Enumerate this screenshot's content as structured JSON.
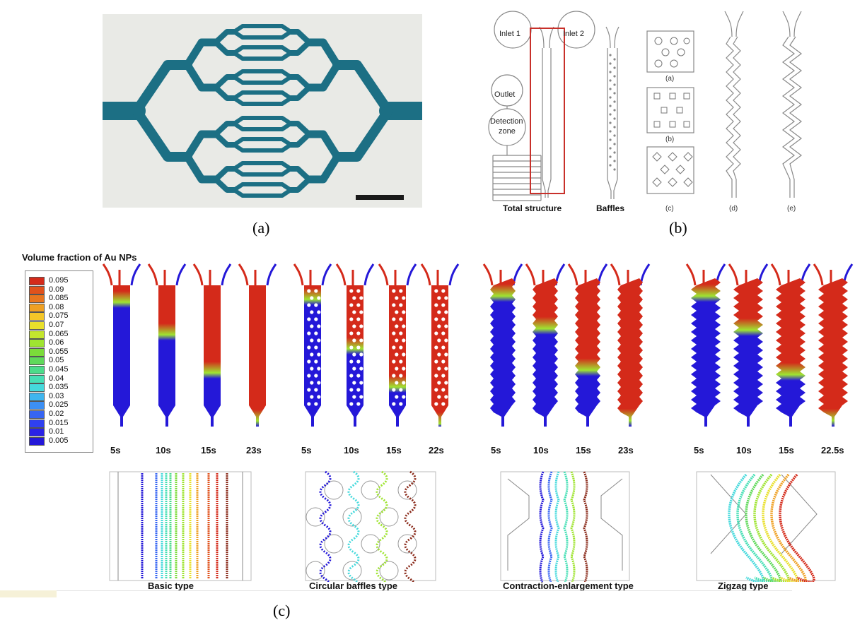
{
  "panel_a": {
    "caption": "(a)"
  },
  "panel_b": {
    "caption": "(b)",
    "inlet1": "Inlet 1",
    "inlet2": "Inlet 2",
    "outlet": "Outlet",
    "detection1": "Detection",
    "detection2": "zone",
    "total_structure": "Total structure",
    "baffles": "Baffles",
    "sub_a": "(a)",
    "sub_b": "(b)",
    "sub_c": "(c)",
    "sub_d": "(d)",
    "sub_e": "(e)"
  },
  "panel_c": {
    "caption": "(c)",
    "legend_title": "Volume fraction of Au NPs",
    "legend": [
      {
        "value": "0.095",
        "color": "#d42a1a"
      },
      {
        "value": "0.09",
        "color": "#e0521c"
      },
      {
        "value": "0.085",
        "color": "#e8761f"
      },
      {
        "value": "0.08",
        "color": "#efa023"
      },
      {
        "value": "0.075",
        "color": "#f4c628"
      },
      {
        "value": "0.07",
        "color": "#e9e02b"
      },
      {
        "value": "0.065",
        "color": "#c4e62d"
      },
      {
        "value": "0.06",
        "color": "#9fe431"
      },
      {
        "value": "0.055",
        "color": "#7bdc3a"
      },
      {
        "value": "0.05",
        "color": "#5fd95a"
      },
      {
        "value": "0.045",
        "color": "#4cdc8a"
      },
      {
        "value": "0.04",
        "color": "#46dfb5"
      },
      {
        "value": "0.035",
        "color": "#45d9dc"
      },
      {
        "value": "0.03",
        "color": "#3fb5ee"
      },
      {
        "value": "0.025",
        "color": "#3c8ff3"
      },
      {
        "value": "0.02",
        "color": "#3765f3"
      },
      {
        "value": "0.015",
        "color": "#2f40f0"
      },
      {
        "value": "0.01",
        "color": "#2a22e6"
      },
      {
        "value": "0.005",
        "color": "#2418d8"
      }
    ],
    "groups": [
      {
        "name": "Basic type",
        "times": [
          "5s",
          "10s",
          "15s",
          "23s"
        ]
      },
      {
        "name": "Circular baffles type",
        "times": [
          "5s",
          "10s",
          "15s",
          "22s"
        ]
      },
      {
        "name": "Contraction-enlargement type",
        "times": [
          "5s",
          "10s",
          "15s",
          "23s"
        ]
      },
      {
        "name": "Zigzag type",
        "times": [
          "5s",
          "10s",
          "15s",
          "22.5s"
        ]
      }
    ]
  },
  "colors": {
    "chip": "#1c6f84",
    "chip_bg": "#e9eae6",
    "hot": "#d42a1a",
    "cold": "#2418d8",
    "frame_red": "#c8302a"
  }
}
